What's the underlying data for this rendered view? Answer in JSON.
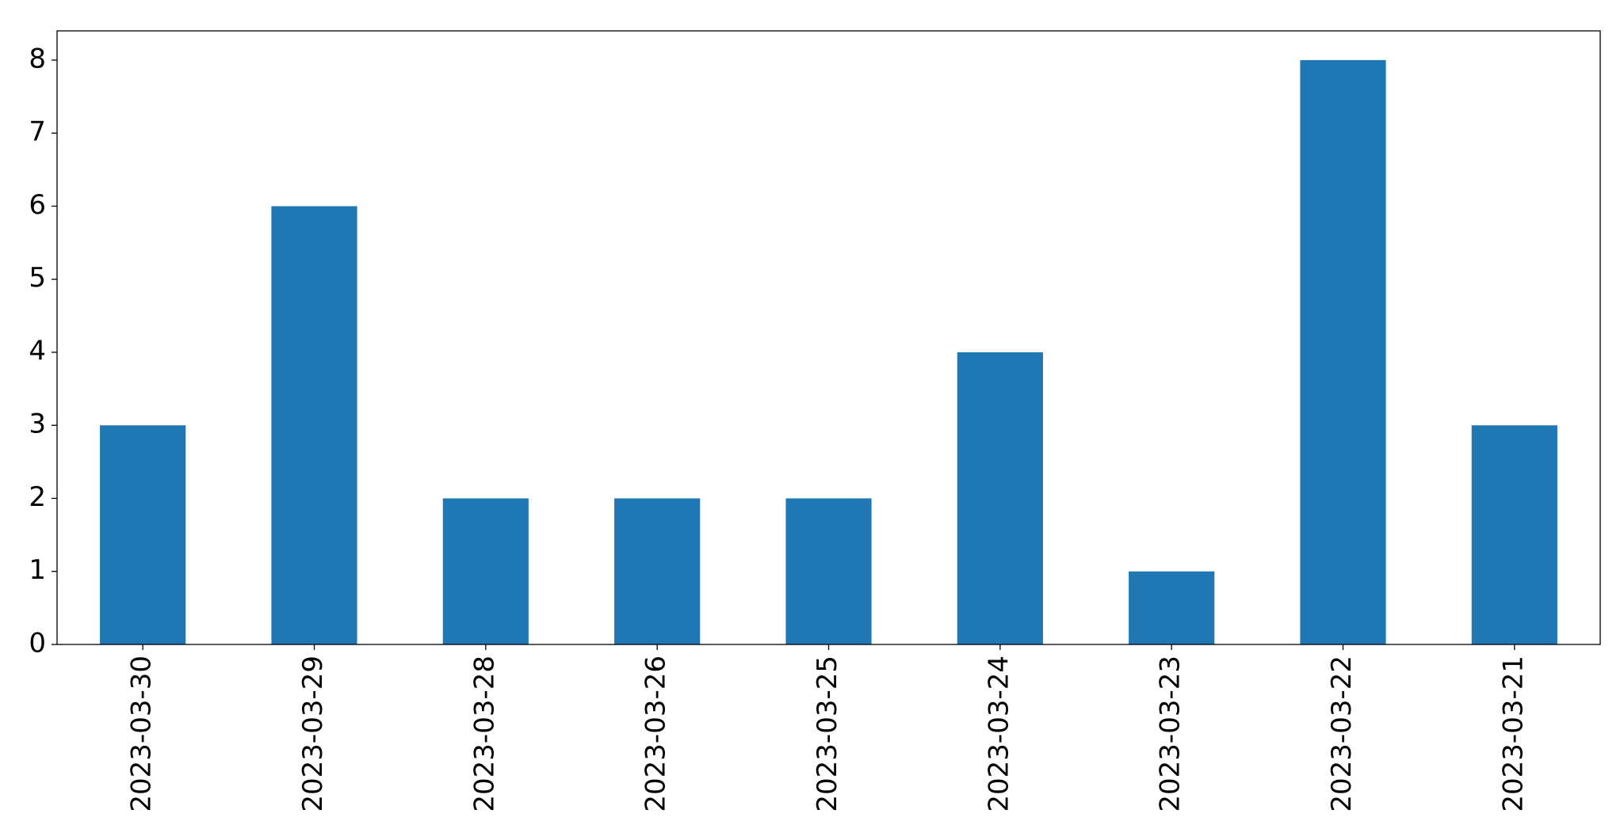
{
  "chart_data": {
    "type": "bar",
    "categories": [
      "2023-03-30",
      "2023-03-29",
      "2023-03-28",
      "2023-03-26",
      "2023-03-25",
      "2023-03-24",
      "2023-03-23",
      "2023-03-22",
      "2023-03-21"
    ],
    "values": [
      3,
      6,
      2,
      2,
      2,
      4,
      1,
      8,
      3
    ],
    "color": "#1f77b4",
    "ylim": [
      0,
      8.4
    ],
    "yticks": [
      0,
      1,
      2,
      3,
      4,
      5,
      6,
      7,
      8
    ],
    "grid": false
  }
}
